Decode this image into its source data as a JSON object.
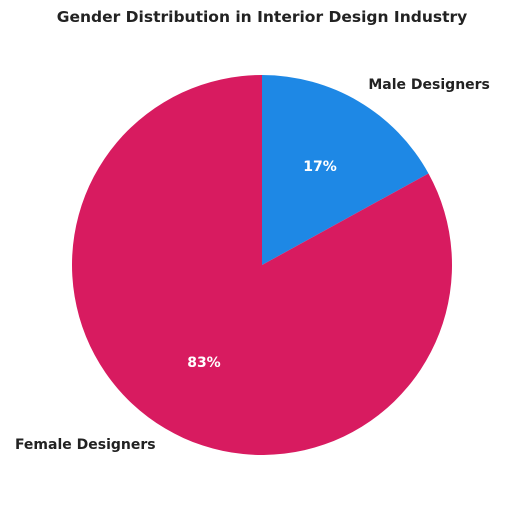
{
  "chart_data": {
    "type": "pie",
    "title": "Gender Distribution in Interior Design Industry",
    "slices": [
      {
        "label": "Male Designers",
        "value": 17,
        "pct_label": "17%",
        "color": "#1e88e5"
      },
      {
        "label": "Female Designers",
        "value": 83,
        "pct_label": "83%",
        "color": "#d81b60"
      }
    ],
    "start_angle": "12 o'clock",
    "direction": "clockwise",
    "legend": "none"
  }
}
